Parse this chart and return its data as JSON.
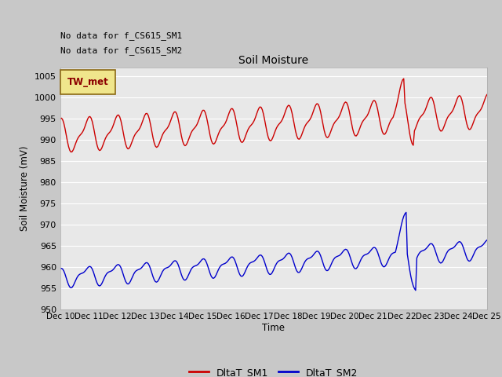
{
  "title": "Soil Moisture",
  "ylabel": "Soil Moisture (mV)",
  "xlabel": "Time",
  "ylim": [
    950,
    1007
  ],
  "yticks": [
    950,
    955,
    960,
    965,
    970,
    975,
    980,
    985,
    990,
    995,
    1000,
    1005
  ],
  "xtick_labels": [
    "Dec 10",
    "Dec 11",
    "Dec 12",
    "Dec 13",
    "Dec 14",
    "Dec 15",
    "Dec 16",
    "Dec 17",
    "Dec 18",
    "Dec 19",
    "Dec 20",
    "Dec 21",
    "Dec 22",
    "Dec 23",
    "Dec 24",
    "Dec 25"
  ],
  "no_data_texts": [
    "No data for f_CS615_SM1",
    "No data for f_CS615_SM2"
  ],
  "legend_box_text": "TW_met",
  "legend_box_color": "#f0e68c",
  "legend_box_border": "#8b6914",
  "sm1_color": "#cc0000",
  "sm2_color": "#0000cc",
  "bg_color": "#e8e8e8",
  "fig_bg_color": "#c8c8c8",
  "grid_color": "#ffffff",
  "legend_labels": [
    "DltaT_SM1",
    "DltaT_SM2"
  ]
}
